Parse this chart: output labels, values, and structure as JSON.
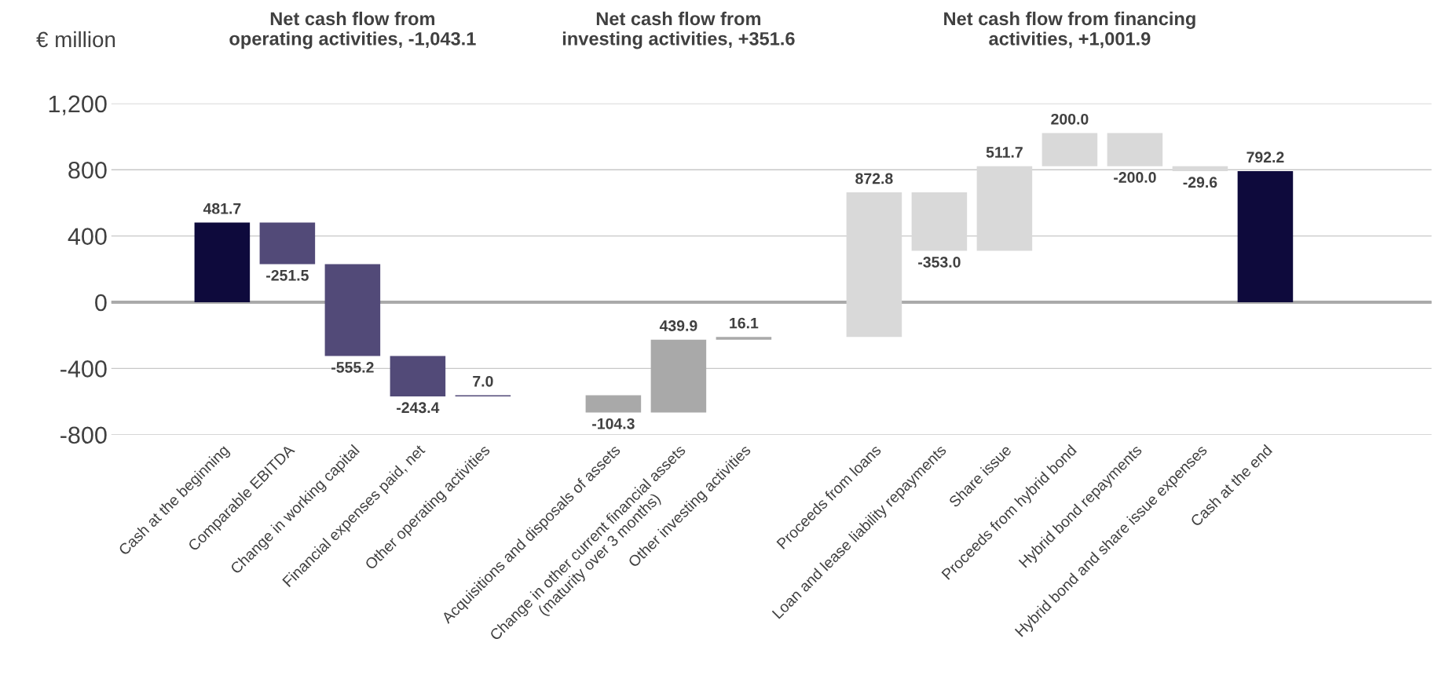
{
  "chart_data": {
    "type": "bar",
    "ylabel": "€ million",
    "categories": [
      "Cash at the beginning",
      "Comparable EBITDA",
      "Change in working capital",
      "Financial expenses paid, net",
      "Other operating activities",
      null,
      "Acquisitions and disposals of assets",
      "Change in other current financial assets\n(maturity over 3 months)",
      "Other investing activities",
      null,
      "Proceeds from loans",
      "Loan and lease liability repayments",
      "Share issue",
      "Proceeds from hybrid bond",
      "Hybrid bond repayments",
      "Hybrid bond and share issue expenses",
      "Cash at the end"
    ],
    "values": [
      481.7,
      -251.5,
      -555.2,
      -243.4,
      7.0,
      null,
      -104.3,
      439.9,
      16.1,
      null,
      872.8,
      -353.0,
      511.7,
      200.0,
      -200.0,
      -29.6,
      792.2
    ],
    "base": [
      0,
      481.7,
      230.2,
      -325.0,
      -568.4,
      null,
      -561.4,
      -665.7,
      -225.8,
      null,
      -209.7,
      663.1,
      310.1,
      821.8,
      1021.8,
      821.8,
      0
    ],
    "colors": [
      "#0e0a3c",
      "#524a78",
      "#524a78",
      "#524a78",
      "#524a78",
      null,
      "#a9a9a9",
      "#a9a9a9",
      "#a9a9a9",
      null,
      "#d9d9d9",
      "#d9d9d9",
      "#d9d9d9",
      "#d9d9d9",
      "#d9d9d9",
      "#d9d9d9",
      "#0e0a3c"
    ],
    "value_labels": [
      "481.7",
      "-251.5",
      "-555.2",
      "-243.4",
      "7.0",
      null,
      "-104.3",
      "439.9",
      "16.1",
      null,
      "872.8",
      "-353.0",
      "511.7",
      "200.0",
      "-200.0",
      "-29.6",
      "792.2"
    ],
    "ylim": [
      -800,
      1200
    ],
    "yticks": [
      {
        "value": -800,
        "label": "-800"
      },
      {
        "value": -400,
        "label": "-400"
      },
      0,
      400,
      800,
      {
        "value": 1200,
        "label": "1,200"
      }
    ],
    "grid": "y",
    "ref_lines": [
      {
        "axis": "y",
        "value": 0,
        "color": "#aaaaaa"
      }
    ],
    "annotations": [
      "Net cash flow from\noperating activities, -1,043.1",
      "Net cash flow from\ninvesting activities, +351.6",
      "Net cash flow from financing\nactivities, +1,001.9"
    ]
  }
}
